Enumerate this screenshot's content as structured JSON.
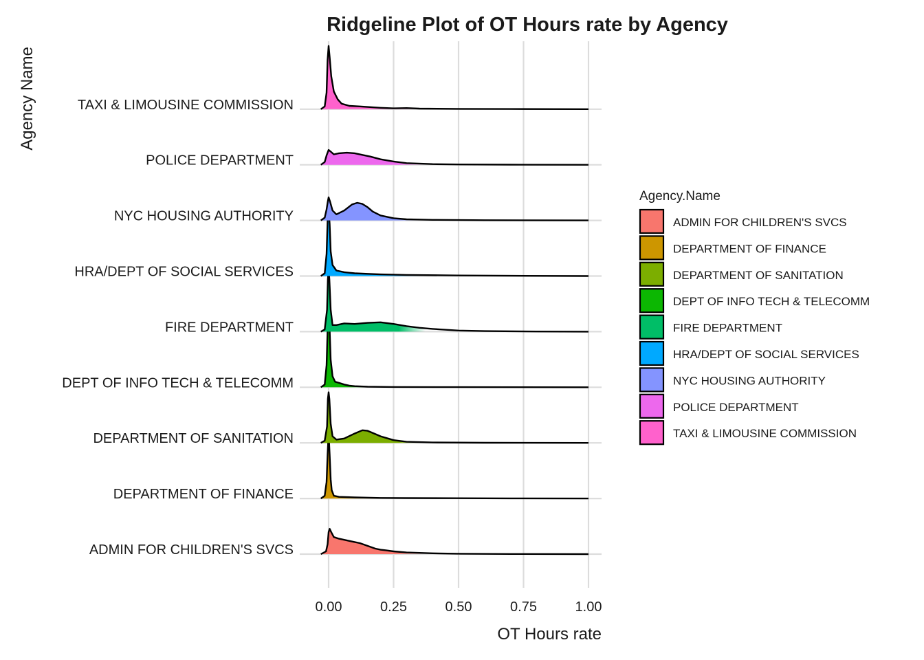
{
  "chart_data": {
    "type": "ridgeline",
    "title": "Ridgeline Plot of OT Hours rate by Agency",
    "xlabel": "OT Hours rate",
    "ylabel": "Agency Name",
    "xlim": [
      -0.04,
      1.0
    ],
    "xticks": [
      0.0,
      0.25,
      0.5,
      0.75,
      1.0
    ],
    "xtick_labels": [
      "0.00",
      "0.25",
      "0.50",
      "0.75",
      "1.00"
    ],
    "grid": true,
    "legend": {
      "title": "Agency.Name",
      "position": "right"
    },
    "series": [
      {
        "name": "ADMIN FOR CHILDREN'S SVCS",
        "color": "#F8766D",
        "points": [
          [
            -0.03,
            0
          ],
          [
            -0.01,
            0.05
          ],
          [
            -0.004,
            0.18
          ],
          [
            0.0,
            0.4
          ],
          [
            0.004,
            0.46
          ],
          [
            0.01,
            0.4
          ],
          [
            0.02,
            0.31
          ],
          [
            0.04,
            0.28
          ],
          [
            0.06,
            0.26
          ],
          [
            0.08,
            0.24
          ],
          [
            0.1,
            0.22
          ],
          [
            0.12,
            0.2
          ],
          [
            0.15,
            0.15
          ],
          [
            0.18,
            0.1
          ],
          [
            0.2,
            0.08
          ],
          [
            0.22,
            0.07
          ],
          [
            0.25,
            0.05
          ],
          [
            0.3,
            0.03
          ],
          [
            0.4,
            0.015
          ],
          [
            0.5,
            0.008
          ],
          [
            0.7,
            0.003
          ],
          [
            1.0,
            0
          ]
        ]
      },
      {
        "name": "DEPARTMENT OF FINANCE",
        "color": "#CD9600",
        "points": [
          [
            -0.03,
            0
          ],
          [
            -0.015,
            0.05
          ],
          [
            -0.008,
            0.3
          ],
          [
            -0.004,
            0.8
          ],
          [
            0.0,
            1.2
          ],
          [
            0.004,
            0.8
          ],
          [
            0.008,
            0.35
          ],
          [
            0.012,
            0.15
          ],
          [
            0.02,
            0.05
          ],
          [
            0.04,
            0.03
          ],
          [
            0.1,
            0.02
          ],
          [
            0.2,
            0.01
          ],
          [
            0.3,
            0.008
          ],
          [
            0.5,
            0.005
          ],
          [
            0.7,
            0.003
          ],
          [
            1.0,
            0
          ]
        ]
      },
      {
        "name": "DEPARTMENT OF SANITATION",
        "color": "#7CAE00",
        "points": [
          [
            -0.03,
            0
          ],
          [
            -0.015,
            0.04
          ],
          [
            -0.006,
            0.3
          ],
          [
            -0.003,
            0.8
          ],
          [
            0.0,
            0.92
          ],
          [
            0.003,
            0.8
          ],
          [
            0.008,
            0.35
          ],
          [
            0.015,
            0.12
          ],
          [
            0.03,
            0.06
          ],
          [
            0.06,
            0.08
          ],
          [
            0.1,
            0.17
          ],
          [
            0.13,
            0.23
          ],
          [
            0.15,
            0.22
          ],
          [
            0.18,
            0.16
          ],
          [
            0.2,
            0.12
          ],
          [
            0.25,
            0.05
          ],
          [
            0.3,
            0.02
          ],
          [
            0.4,
            0.008
          ],
          [
            0.6,
            0.003
          ],
          [
            1.0,
            0
          ]
        ]
      },
      {
        "name": "DEPT OF INFO TECH & TELECOMM",
        "color": "#0CB702",
        "points": [
          [
            -0.03,
            0
          ],
          [
            -0.015,
            0.05
          ],
          [
            -0.008,
            0.4
          ],
          [
            -0.004,
            1.05
          ],
          [
            0.0,
            1.3
          ],
          [
            0.004,
            1.05
          ],
          [
            0.008,
            0.5
          ],
          [
            0.015,
            0.2
          ],
          [
            0.025,
            0.1
          ],
          [
            0.04,
            0.08
          ],
          [
            0.06,
            0.05
          ],
          [
            0.08,
            0.03
          ],
          [
            0.1,
            0.02
          ],
          [
            0.15,
            0.01
          ],
          [
            0.25,
            0.005
          ],
          [
            0.5,
            0.003
          ],
          [
            1.0,
            0
          ]
        ]
      },
      {
        "name": "FIRE DEPARTMENT",
        "color": "#00BE67",
        "points": [
          [
            -0.03,
            0
          ],
          [
            -0.015,
            0.04
          ],
          [
            -0.006,
            0.4
          ],
          [
            -0.003,
            0.95
          ],
          [
            0.0,
            1.15
          ],
          [
            0.003,
            0.95
          ],
          [
            0.008,
            0.4
          ],
          [
            0.015,
            0.12
          ],
          [
            0.03,
            0.12
          ],
          [
            0.06,
            0.15
          ],
          [
            0.1,
            0.14
          ],
          [
            0.15,
            0.16
          ],
          [
            0.2,
            0.17
          ],
          [
            0.25,
            0.14
          ],
          [
            0.3,
            0.1
          ],
          [
            0.35,
            0.07
          ],
          [
            0.4,
            0.05
          ],
          [
            0.5,
            0.02
          ],
          [
            0.6,
            0.01
          ],
          [
            0.8,
            0.003
          ],
          [
            1.0,
            0
          ]
        ]
      },
      {
        "name": "HRA/DEPT OF SOCIAL SERVICES",
        "color": "#00A9FF",
        "points": [
          [
            -0.03,
            0
          ],
          [
            -0.015,
            0.05
          ],
          [
            -0.008,
            0.4
          ],
          [
            -0.004,
            1.0
          ],
          [
            0.0,
            1.2
          ],
          [
            0.004,
            0.95
          ],
          [
            0.008,
            0.45
          ],
          [
            0.015,
            0.2
          ],
          [
            0.03,
            0.1
          ],
          [
            0.06,
            0.07
          ],
          [
            0.1,
            0.05
          ],
          [
            0.15,
            0.04
          ],
          [
            0.2,
            0.03
          ],
          [
            0.3,
            0.02
          ],
          [
            0.5,
            0.01
          ],
          [
            0.7,
            0.005
          ],
          [
            1.0,
            0
          ]
        ]
      },
      {
        "name": "NYC HOUSING AUTHORITY",
        "color": "#8494FF",
        "points": [
          [
            -0.03,
            0
          ],
          [
            -0.015,
            0.05
          ],
          [
            -0.008,
            0.2
          ],
          [
            -0.003,
            0.35
          ],
          [
            0.0,
            0.42
          ],
          [
            0.005,
            0.35
          ],
          [
            0.015,
            0.18
          ],
          [
            0.03,
            0.11
          ],
          [
            0.06,
            0.18
          ],
          [
            0.09,
            0.29
          ],
          [
            0.11,
            0.32
          ],
          [
            0.13,
            0.3
          ],
          [
            0.15,
            0.24
          ],
          [
            0.17,
            0.16
          ],
          [
            0.2,
            0.09
          ],
          [
            0.25,
            0.04
          ],
          [
            0.3,
            0.02
          ],
          [
            0.4,
            0.01
          ],
          [
            0.6,
            0.004
          ],
          [
            1.0,
            0
          ]
        ]
      },
      {
        "name": "POLICE DEPARTMENT",
        "color": "#ED68ED",
        "points": [
          [
            -0.03,
            0
          ],
          [
            -0.015,
            0.05
          ],
          [
            -0.008,
            0.17
          ],
          [
            0.0,
            0.27
          ],
          [
            0.008,
            0.24
          ],
          [
            0.02,
            0.19
          ],
          [
            0.04,
            0.21
          ],
          [
            0.07,
            0.22
          ],
          [
            0.1,
            0.21
          ],
          [
            0.13,
            0.18
          ],
          [
            0.16,
            0.15
          ],
          [
            0.2,
            0.1
          ],
          [
            0.25,
            0.06
          ],
          [
            0.3,
            0.03
          ],
          [
            0.4,
            0.012
          ],
          [
            0.5,
            0.006
          ],
          [
            0.7,
            0.002
          ],
          [
            1.0,
            0
          ]
        ]
      },
      {
        "name": "TAXI & LIMOUSINE COMMISSION",
        "color": "#FF61CC",
        "points": [
          [
            -0.03,
            0
          ],
          [
            -0.015,
            0.05
          ],
          [
            -0.008,
            0.3
          ],
          [
            -0.004,
            0.9
          ],
          [
            0.0,
            1.15
          ],
          [
            0.004,
            0.95
          ],
          [
            0.01,
            0.6
          ],
          [
            0.02,
            0.32
          ],
          [
            0.035,
            0.18
          ],
          [
            0.05,
            0.1
          ],
          [
            0.08,
            0.06
          ],
          [
            0.12,
            0.05
          ],
          [
            0.15,
            0.04
          ],
          [
            0.2,
            0.025
          ],
          [
            0.25,
            0.015
          ],
          [
            0.3,
            0.02
          ],
          [
            0.35,
            0.01
          ],
          [
            0.5,
            0.005
          ],
          [
            0.7,
            0.002
          ],
          [
            1.0,
            0
          ]
        ]
      }
    ]
  }
}
